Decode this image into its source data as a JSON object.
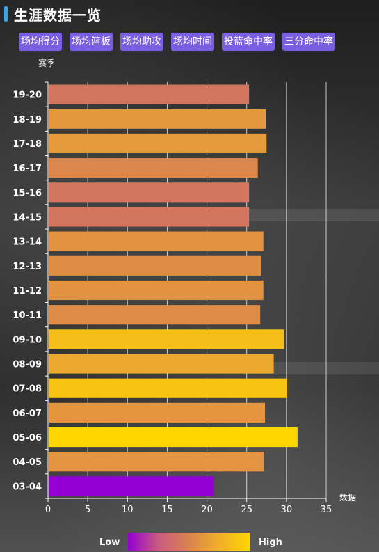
{
  "title": "生涯数据一览",
  "tabs": [
    "场均得分",
    "场均篮板",
    "场均助攻",
    "场均时间",
    "投篮命中率",
    "三分命中率"
  ],
  "colors": {
    "accent": "#3aa3e3",
    "tab_bg": "#7b5fe3",
    "gradient": [
      "#9400d3",
      "#c95c7f",
      "#d9834e",
      "#f0b029",
      "#ffd700"
    ]
  },
  "visual_map": {
    "low_label": "Low",
    "high_label": "High",
    "min": 21,
    "max": 31.4
  },
  "chart_data": {
    "type": "bar",
    "orientation": "horizontal",
    "categories": [
      "19-20",
      "18-19",
      "17-18",
      "16-17",
      "15-16",
      "14-15",
      "13-14",
      "12-13",
      "11-12",
      "10-11",
      "09-10",
      "08-09",
      "07-08",
      "06-07",
      "05-06",
      "04-05",
      "03-04"
    ],
    "values": [
      25.3,
      27.4,
      27.5,
      26.4,
      25.3,
      25.3,
      27.1,
      26.8,
      27.1,
      26.7,
      29.7,
      28.4,
      30.1,
      27.3,
      31.4,
      27.2,
      20.9
    ],
    "xlabel": "数据",
    "ylabel": "赛季",
    "xlim": [
      0,
      35
    ],
    "xticks": [
      0,
      5,
      10,
      15,
      20,
      25,
      30,
      35
    ],
    "grid": true
  }
}
